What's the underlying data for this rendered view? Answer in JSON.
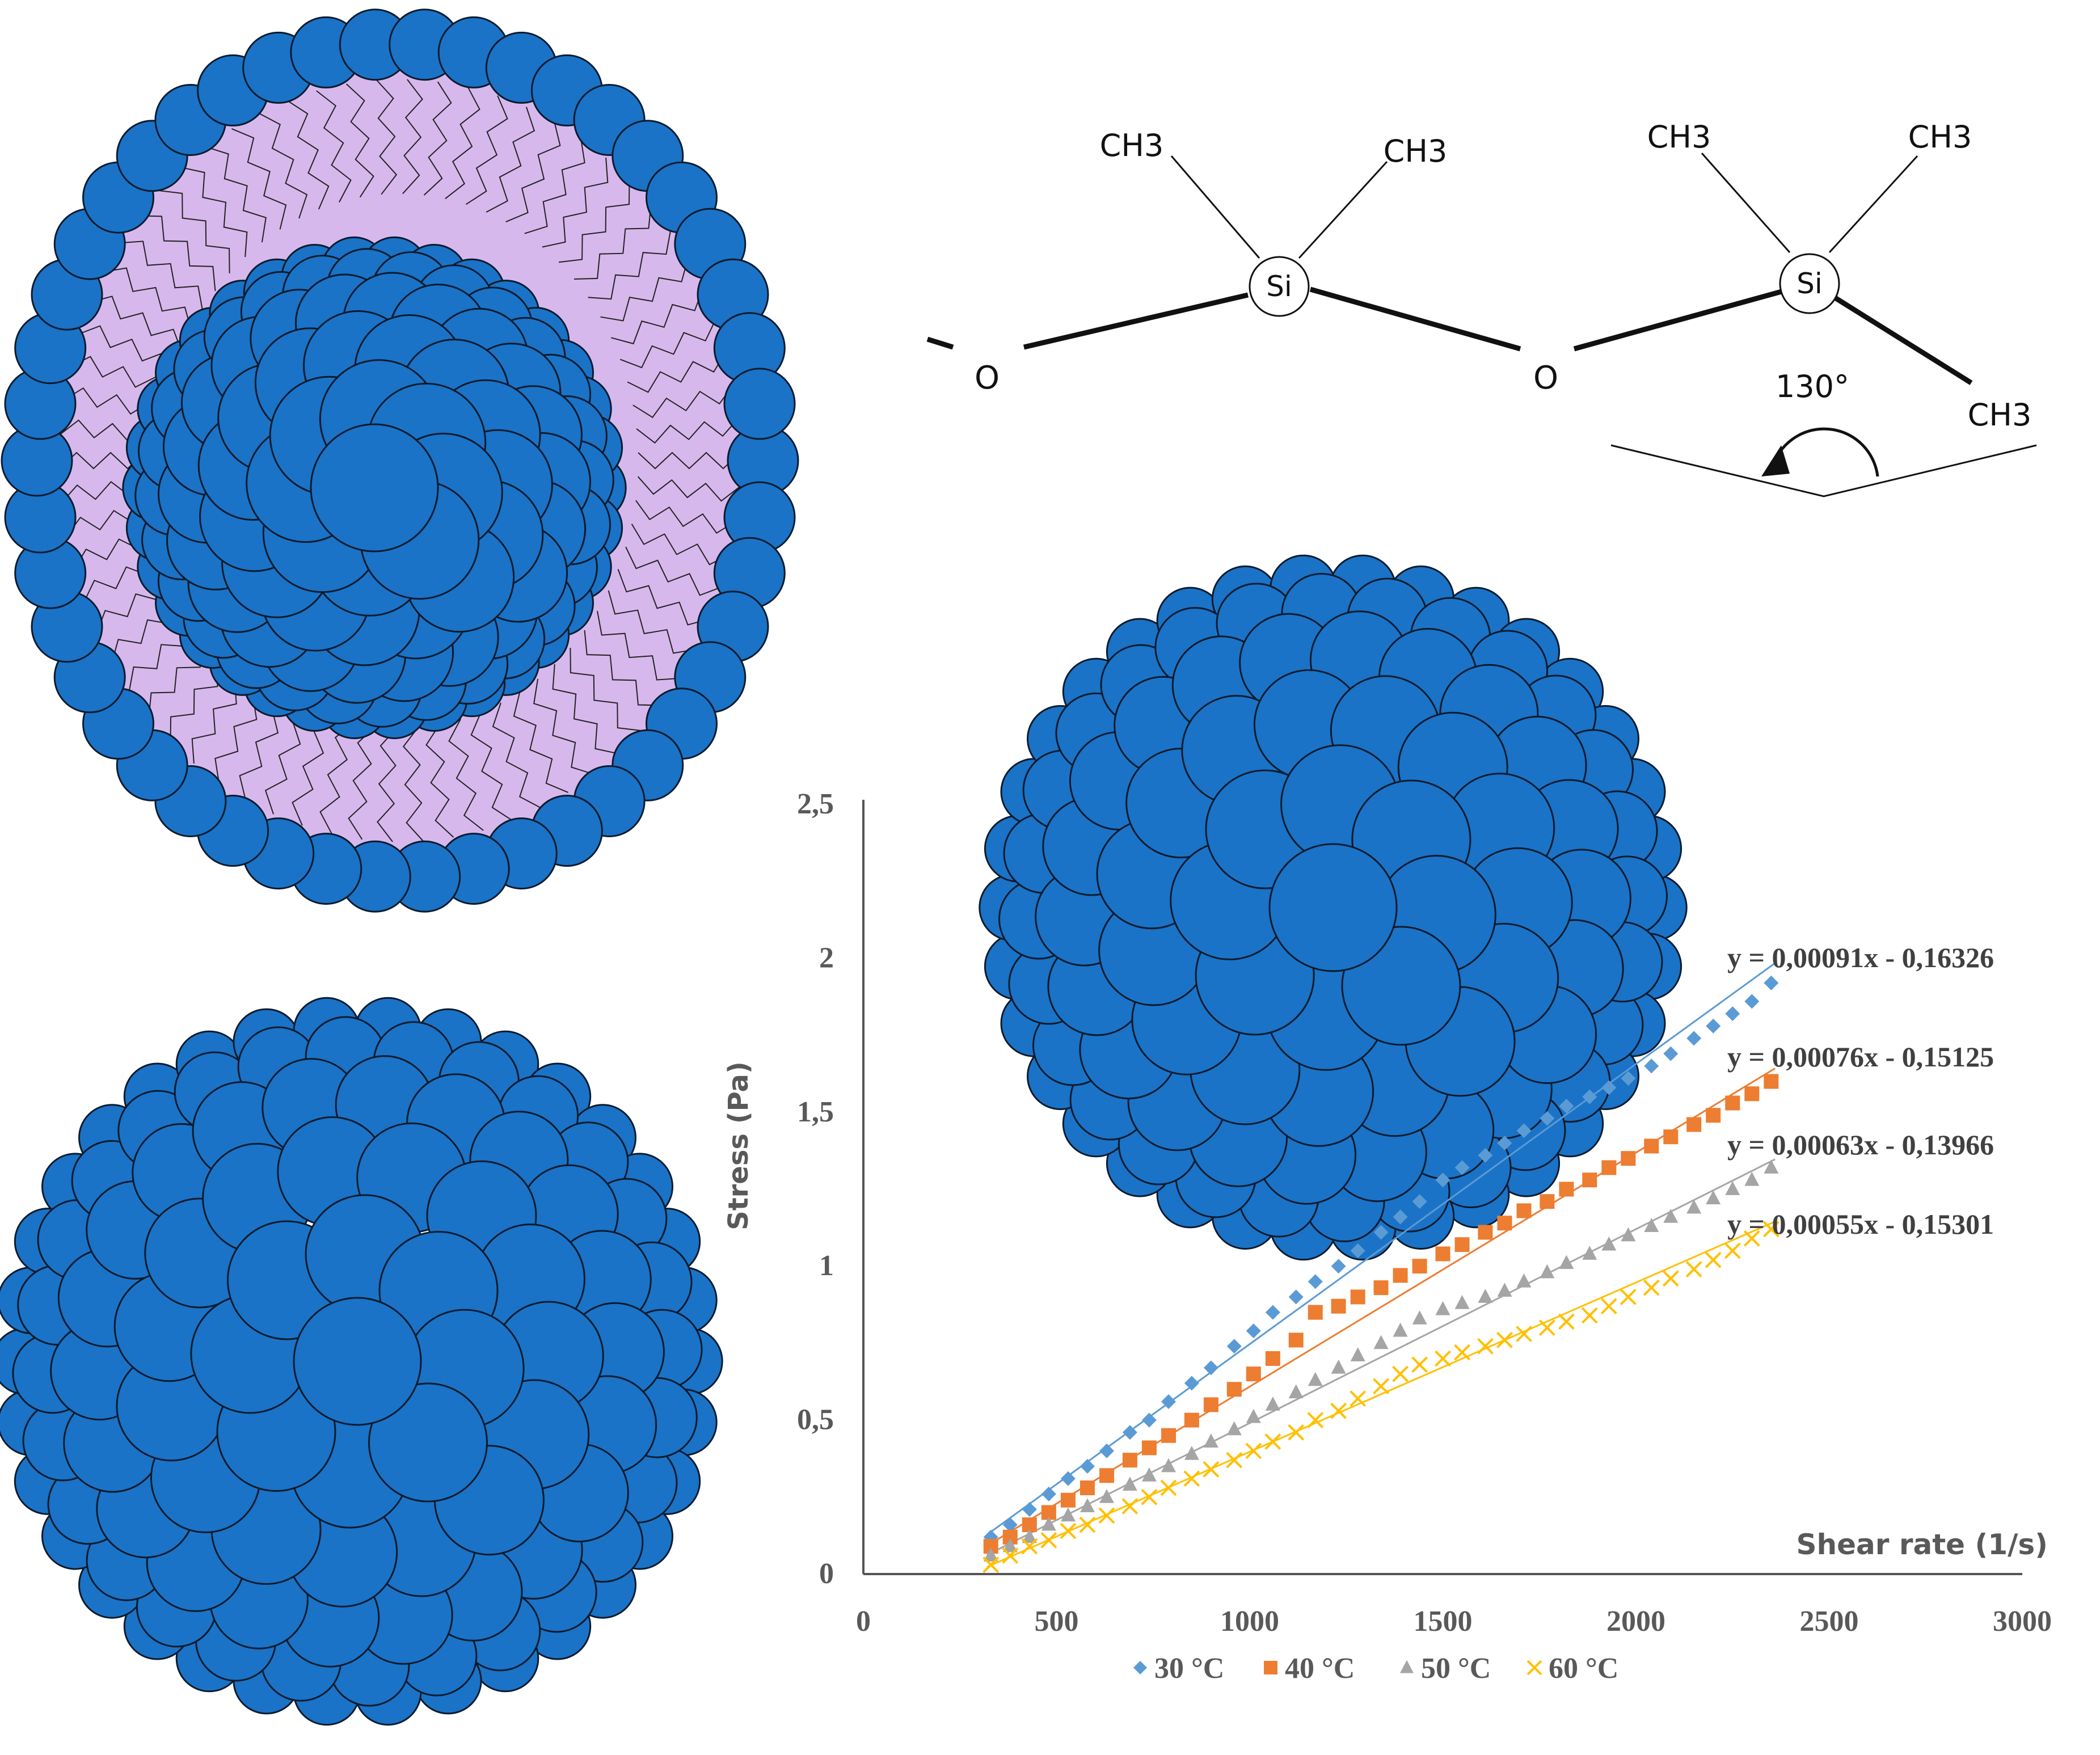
{
  "molecule": {
    "ch3_labels": [
      "CH3",
      "CH3",
      "CH3",
      "CH3",
      "CH3"
    ],
    "si_labels": [
      "Si",
      "Si"
    ],
    "o_labels": [
      "O",
      "O"
    ],
    "angle_label": "130°"
  },
  "colors": {
    "bead": "#1a73c6",
    "bead_stroke": "#0b1b2e",
    "membrane": "#d7b8ec",
    "s30": "#5b9bd5",
    "s40": "#ed7d31",
    "s50": "#a5a5a5",
    "s60": "#ffc000"
  },
  "chart_data": {
    "type": "scatter",
    "xlabel": "Shear rate (1/s)",
    "ylabel": "Stress (Pa)",
    "xlim": [
      0,
      3000
    ],
    "ylim": [
      0,
      2.5
    ],
    "x_ticks": [
      "0",
      "500",
      "1000",
      "1500",
      "2000",
      "2500",
      "3000"
    ],
    "y_ticks": [
      "0",
      "0,5",
      "1",
      "1,5",
      "2",
      "2,5"
    ],
    "grid": false,
    "legend_position": "bottom",
    "series": [
      {
        "name": "30  °C",
        "color_key": "s30",
        "marker": "diamond",
        "slope": 0.00091,
        "intercept": -0.16326,
        "equation": "y = 0,00091x - 0,16326",
        "x": [
          330,
          380,
          430,
          480,
          530,
          580,
          630,
          690,
          740,
          790,
          850,
          900,
          960,
          1010,
          1060,
          1120,
          1170,
          1230,
          1280,
          1340,
          1390,
          1440,
          1500,
          1550,
          1610,
          1660,
          1710,
          1770,
          1820,
          1880,
          1930,
          1980,
          2040,
          2090,
          2150,
          2200,
          2250,
          2300,
          2350
        ],
        "y": [
          0.12,
          0.16,
          0.21,
          0.26,
          0.31,
          0.35,
          0.4,
          0.46,
          0.5,
          0.56,
          0.62,
          0.67,
          0.74,
          0.79,
          0.85,
          0.9,
          0.95,
          1.0,
          1.05,
          1.11,
          1.16,
          1.21,
          1.28,
          1.32,
          1.36,
          1.4,
          1.44,
          1.48,
          1.52,
          1.55,
          1.58,
          1.61,
          1.65,
          1.69,
          1.74,
          1.78,
          1.82,
          1.86,
          1.92
        ]
      },
      {
        "name": "40 °C",
        "color_key": "s40",
        "marker": "square",
        "slope": 0.00076,
        "intercept": -0.15125,
        "equation": "y = 0,00076x - 0,15125",
        "x": [
          330,
          380,
          430,
          480,
          530,
          580,
          630,
          690,
          740,
          790,
          850,
          900,
          960,
          1010,
          1060,
          1120,
          1170,
          1230,
          1280,
          1340,
          1390,
          1440,
          1500,
          1550,
          1610,
          1660,
          1710,
          1770,
          1820,
          1880,
          1930,
          1980,
          2040,
          2090,
          2150,
          2200,
          2250,
          2300,
          2350
        ],
        "y": [
          0.09,
          0.12,
          0.16,
          0.2,
          0.24,
          0.28,
          0.32,
          0.37,
          0.41,
          0.45,
          0.5,
          0.55,
          0.6,
          0.65,
          0.7,
          0.76,
          0.85,
          0.87,
          0.9,
          0.93,
          0.97,
          1.0,
          1.04,
          1.07,
          1.11,
          1.14,
          1.18,
          1.21,
          1.25,
          1.28,
          1.32,
          1.35,
          1.39,
          1.42,
          1.46,
          1.49,
          1.53,
          1.56,
          1.6
        ]
      },
      {
        "name": "50  °C",
        "color_key": "s50",
        "marker": "triangle",
        "slope": 0.00063,
        "intercept": -0.13966,
        "equation": "y = 0,00063x - 0,13966",
        "x": [
          330,
          380,
          430,
          480,
          530,
          580,
          630,
          690,
          740,
          790,
          850,
          900,
          960,
          1010,
          1060,
          1120,
          1170,
          1230,
          1280,
          1340,
          1390,
          1440,
          1500,
          1550,
          1610,
          1660,
          1710,
          1770,
          1820,
          1880,
          1930,
          1980,
          2040,
          2090,
          2150,
          2200,
          2250,
          2300,
          2350
        ],
        "y": [
          0.06,
          0.09,
          0.12,
          0.16,
          0.19,
          0.22,
          0.25,
          0.29,
          0.32,
          0.35,
          0.39,
          0.43,
          0.47,
          0.51,
          0.55,
          0.59,
          0.63,
          0.67,
          0.71,
          0.75,
          0.79,
          0.83,
          0.86,
          0.88,
          0.9,
          0.92,
          0.95,
          0.98,
          1.01,
          1.04,
          1.07,
          1.1,
          1.13,
          1.16,
          1.19,
          1.22,
          1.25,
          1.28,
          1.32
        ]
      },
      {
        "name": "60  °C",
        "color_key": "s60",
        "marker": "x",
        "slope": 0.00055,
        "intercept": -0.15301,
        "equation": "y = 0,00055x - 0,15301",
        "x": [
          330,
          380,
          430,
          480,
          530,
          580,
          630,
          690,
          740,
          790,
          850,
          900,
          960,
          1010,
          1060,
          1120,
          1170,
          1230,
          1280,
          1340,
          1390,
          1440,
          1500,
          1550,
          1610,
          1660,
          1710,
          1770,
          1820,
          1880,
          1930,
          1980,
          2040,
          2090,
          2150,
          2200,
          2250,
          2300,
          2350
        ],
        "y": [
          0.03,
          0.06,
          0.09,
          0.11,
          0.14,
          0.16,
          0.19,
          0.22,
          0.25,
          0.28,
          0.31,
          0.34,
          0.37,
          0.4,
          0.43,
          0.46,
          0.5,
          0.53,
          0.57,
          0.61,
          0.65,
          0.68,
          0.7,
          0.72,
          0.74,
          0.76,
          0.78,
          0.8,
          0.82,
          0.84,
          0.87,
          0.9,
          0.93,
          0.96,
          0.99,
          1.02,
          1.05,
          1.09,
          1.12
        ]
      }
    ]
  }
}
